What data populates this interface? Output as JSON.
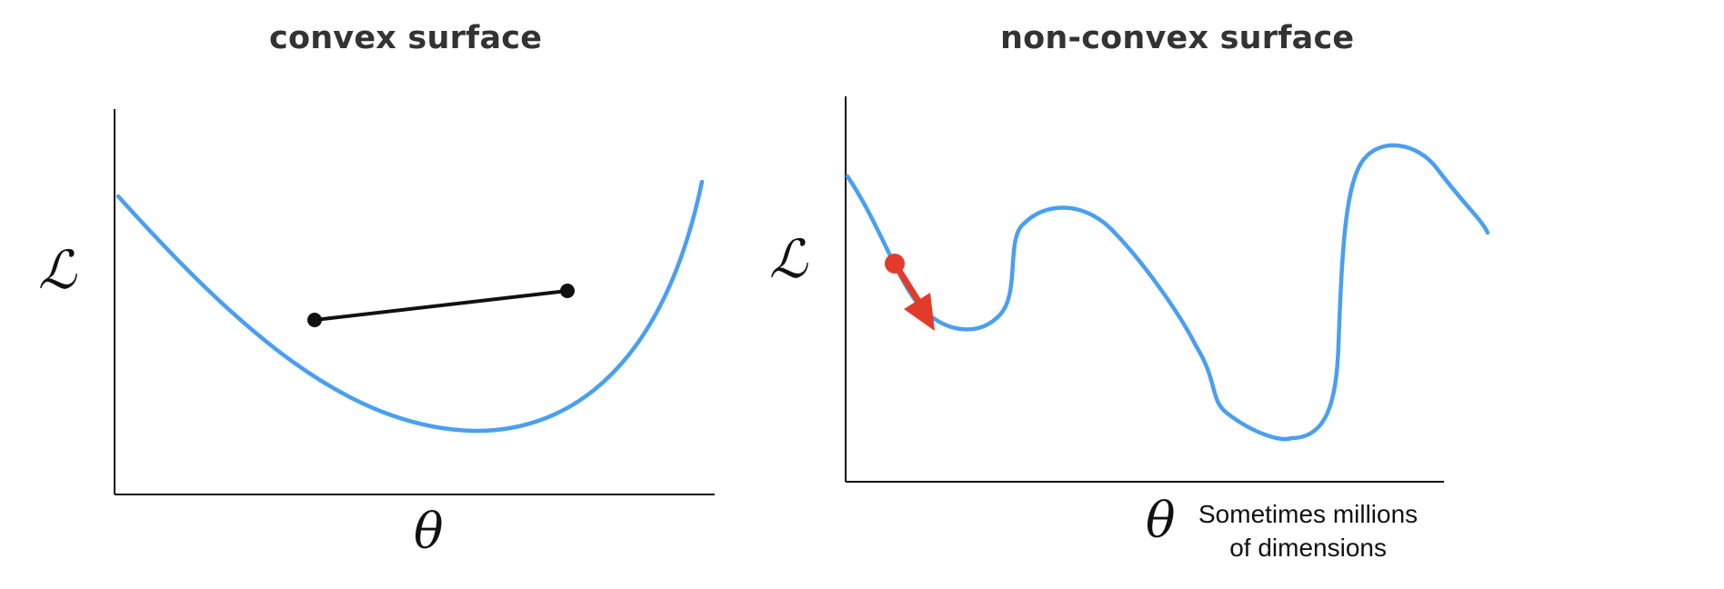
{
  "panels": {
    "left": {
      "title": "convex surface",
      "ylabel": "ℒ",
      "xlabel": "θ"
    },
    "right": {
      "title": "non-convex surface",
      "ylabel": "ℒ",
      "xlabel": "θ",
      "note_line1": "Sometimes millions",
      "note_line2": "of dimensions"
    }
  },
  "colors": {
    "curve": "#4a9ff0",
    "axis": "#111111",
    "chord": "#111111",
    "gradient_marker": "#e23b2b",
    "title": "#333333"
  }
}
